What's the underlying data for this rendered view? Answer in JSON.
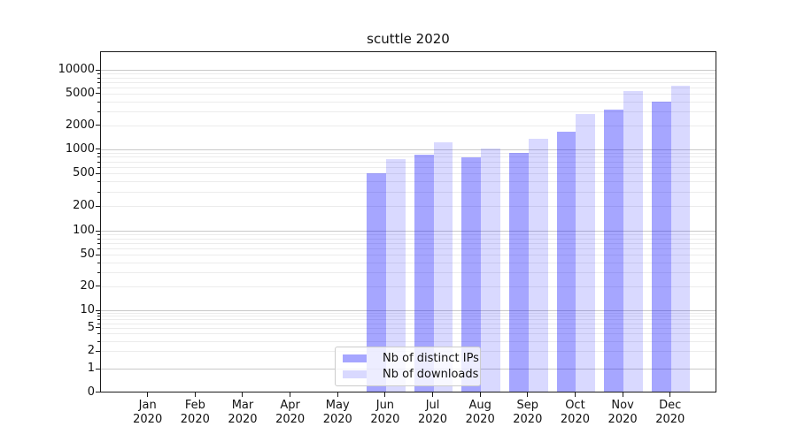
{
  "title": "scuttle 2020",
  "chart_data": {
    "type": "bar",
    "title": "scuttle 2020",
    "categories": [
      "Jan 2020",
      "Feb 2020",
      "Mar 2020",
      "Apr 2020",
      "May 2020",
      "Jun 2020",
      "Jul 2020",
      "Aug 2020",
      "Sep 2020",
      "Oct 2020",
      "Nov 2020",
      "Dec 2020"
    ],
    "x_tick_line1": [
      "Jan",
      "Feb",
      "Mar",
      "Apr",
      "May",
      "Jun",
      "Jul",
      "Aug",
      "Sep",
      "Oct",
      "Nov",
      "Dec"
    ],
    "x_tick_line2": "2020",
    "series": [
      {
        "name": "Nb of distinct IPs",
        "color": "rgba(0,0,255,0.35)",
        "approx_hex_on_white": "#aaaaf9",
        "values": [
          0,
          0,
          0,
          0,
          0,
          505,
          860,
          790,
          900,
          1660,
          3140,
          3950
        ]
      },
      {
        "name": "Nb of downloads",
        "color": "rgba(0,0,255,0.15)",
        "approx_hex_on_white": "#d9d9fb",
        "values": [
          0,
          0,
          0,
          0,
          0,
          750,
          1200,
          1010,
          1350,
          2780,
          5420,
          6310
        ]
      }
    ],
    "y_ticks": [
      0,
      1,
      2,
      5,
      10,
      20,
      50,
      100,
      200,
      500,
      1000,
      2000,
      5000,
      10000
    ],
    "y_scale": "symlog (linear 0-1, logarithmic above 1)",
    "ylim": [
      0,
      17000
    ],
    "xlabel": "",
    "ylabel": "",
    "grid": "on (major gray lines at powers of 10, faint minor lines at 2-9 per decade)",
    "legend": {
      "position": "lower center",
      "entries": [
        "Nb of distinct IPs",
        "Nb of downloads"
      ]
    }
  },
  "colors": {
    "bar_dark": "rgba(0,0,255,0.35)",
    "bar_light": "rgba(0,0,255,0.15)",
    "grid_major": "#c9c9c9",
    "grid_minor": "#ececec",
    "spine": "#1a1a1a",
    "text": "#111111",
    "background": "#ffffff"
  }
}
